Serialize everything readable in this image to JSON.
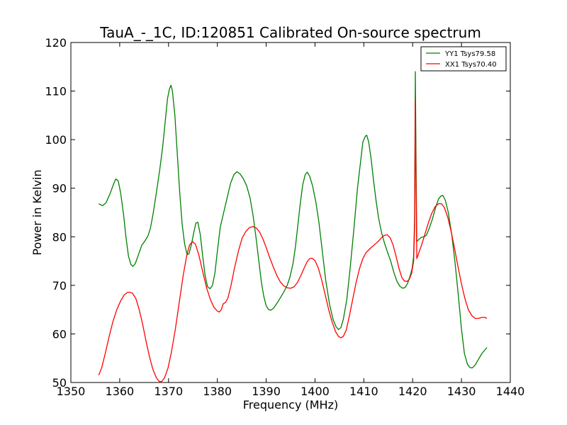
{
  "chart_data": {
    "type": "line",
    "title": "TauA_-_1C, ID:120851 Calibrated On-source spectrum",
    "xlabel": "Frequency (MHz)",
    "ylabel": "Power in Kelvin",
    "xlim": [
      1350,
      1440
    ],
    "ylim": [
      50,
      120
    ],
    "xticks": [
      1350,
      1360,
      1370,
      1380,
      1390,
      1400,
      1410,
      1420,
      1430,
      1440
    ],
    "yticks": [
      50,
      60,
      70,
      80,
      90,
      100,
      110,
      120
    ],
    "grid": false,
    "legend_position": "top-right",
    "series": [
      {
        "name": "YY1 Tsys79.58",
        "color": "#008000",
        "points": [
          [
            1355.7,
            86.8
          ],
          [
            1356.5,
            86.4
          ],
          [
            1357.2,
            87.0
          ],
          [
            1358.0,
            88.8
          ],
          [
            1358.8,
            91.0
          ],
          [
            1359.2,
            91.9
          ],
          [
            1359.7,
            91.5
          ],
          [
            1360.2,
            89.0
          ],
          [
            1360.8,
            84.5
          ],
          [
            1361.3,
            79.8
          ],
          [
            1361.8,
            76.0
          ],
          [
            1362.3,
            74.3
          ],
          [
            1362.7,
            73.9
          ],
          [
            1363.2,
            74.5
          ],
          [
            1363.8,
            76.2
          ],
          [
            1364.5,
            78.2
          ],
          [
            1365.2,
            79.2
          ],
          [
            1365.8,
            80.2
          ],
          [
            1366.3,
            81.8
          ],
          [
            1366.8,
            84.5
          ],
          [
            1367.5,
            89.0
          ],
          [
            1368.2,
            93.8
          ],
          [
            1368.8,
            98.5
          ],
          [
            1369.3,
            103.5
          ],
          [
            1369.8,
            108.5
          ],
          [
            1370.2,
            110.5
          ],
          [
            1370.5,
            111.2
          ],
          [
            1370.8,
            110.0
          ],
          [
            1371.3,
            105.0
          ],
          [
            1371.8,
            97.0
          ],
          [
            1372.3,
            89.0
          ],
          [
            1372.8,
            82.5
          ],
          [
            1373.3,
            78.5
          ],
          [
            1373.8,
            76.3
          ],
          [
            1374.2,
            76.5
          ],
          [
            1374.7,
            78.5
          ],
          [
            1375.2,
            81.0
          ],
          [
            1375.6,
            82.8
          ],
          [
            1376.0,
            83.0
          ],
          [
            1376.5,
            80.5
          ],
          [
            1377.0,
            76.0
          ],
          [
            1377.5,
            72.0
          ],
          [
            1378.0,
            69.7
          ],
          [
            1378.5,
            69.3
          ],
          [
            1379.0,
            70.0
          ],
          [
            1379.5,
            72.5
          ],
          [
            1380.0,
            77.0
          ],
          [
            1380.6,
            82.0
          ],
          [
            1381.3,
            85.0
          ],
          [
            1382.0,
            88.0
          ],
          [
            1382.7,
            91.0
          ],
          [
            1383.4,
            92.8
          ],
          [
            1384.0,
            93.4
          ],
          [
            1384.6,
            93.0
          ],
          [
            1385.3,
            92.0
          ],
          [
            1386.0,
            90.5
          ],
          [
            1386.7,
            88.0
          ],
          [
            1387.3,
            84.5
          ],
          [
            1387.9,
            80.0
          ],
          [
            1388.5,
            75.0
          ],
          [
            1389.0,
            70.8
          ],
          [
            1389.5,
            67.8
          ],
          [
            1390.0,
            65.8
          ],
          [
            1390.5,
            65.0
          ],
          [
            1391.0,
            64.9
          ],
          [
            1391.5,
            65.3
          ],
          [
            1392.2,
            66.3
          ],
          [
            1393.0,
            67.6
          ],
          [
            1393.7,
            68.8
          ],
          [
            1394.3,
            70.0
          ],
          [
            1394.9,
            71.8
          ],
          [
            1395.5,
            74.5
          ],
          [
            1396.0,
            78.0
          ],
          [
            1396.5,
            82.5
          ],
          [
            1397.0,
            87.0
          ],
          [
            1397.5,
            90.8
          ],
          [
            1398.0,
            92.8
          ],
          [
            1398.4,
            93.3
          ],
          [
            1398.9,
            92.5
          ],
          [
            1399.5,
            90.5
          ],
          [
            1400.2,
            87.0
          ],
          [
            1400.8,
            83.0
          ],
          [
            1401.5,
            77.0
          ],
          [
            1402.2,
            71.0
          ],
          [
            1403.0,
            66.0
          ],
          [
            1403.7,
            63.0
          ],
          [
            1404.3,
            61.5
          ],
          [
            1404.8,
            60.9
          ],
          [
            1405.3,
            61.3
          ],
          [
            1405.8,
            63.0
          ],
          [
            1406.5,
            67.0
          ],
          [
            1407.2,
            73.5
          ],
          [
            1408.0,
            82.0
          ],
          [
            1408.7,
            90.0
          ],
          [
            1409.4,
            96.0
          ],
          [
            1409.8,
            99.5
          ],
          [
            1410.3,
            100.7
          ],
          [
            1410.6,
            100.9
          ],
          [
            1411.0,
            99.5
          ],
          [
            1411.5,
            96.0
          ],
          [
            1412.0,
            91.5
          ],
          [
            1412.5,
            87.5
          ],
          [
            1413.0,
            84.0
          ],
          [
            1413.6,
            81.0
          ],
          [
            1414.2,
            78.8
          ],
          [
            1414.8,
            77.0
          ],
          [
            1415.5,
            75.0
          ],
          [
            1416.2,
            72.5
          ],
          [
            1416.8,
            70.8
          ],
          [
            1417.4,
            69.8
          ],
          [
            1418.0,
            69.4
          ],
          [
            1418.5,
            69.6
          ],
          [
            1419.0,
            70.5
          ],
          [
            1419.5,
            72.0
          ],
          [
            1419.9,
            73.5
          ],
          [
            1420.2,
            76.0
          ],
          [
            1420.4,
            84.0
          ],
          [
            1420.55,
            114.0
          ],
          [
            1420.7,
            95.0
          ],
          [
            1420.85,
            79.0
          ],
          [
            1421.3,
            79.5
          ],
          [
            1421.8,
            79.9
          ],
          [
            1422.3,
            80.0
          ],
          [
            1422.8,
            80.3
          ],
          [
            1423.3,
            81.5
          ],
          [
            1424.0,
            83.5
          ],
          [
            1424.7,
            86.0
          ],
          [
            1425.3,
            87.8
          ],
          [
            1425.8,
            88.4
          ],
          [
            1426.2,
            88.5
          ],
          [
            1426.7,
            87.5
          ],
          [
            1427.3,
            85.0
          ],
          [
            1428.0,
            80.5
          ],
          [
            1428.7,
            74.5
          ],
          [
            1429.4,
            67.5
          ],
          [
            1430.0,
            61.0
          ],
          [
            1430.6,
            56.0
          ],
          [
            1431.2,
            53.8
          ],
          [
            1431.7,
            53.1
          ],
          [
            1432.2,
            53.0
          ],
          [
            1432.8,
            53.6
          ],
          [
            1433.5,
            54.8
          ],
          [
            1434.2,
            56.0
          ],
          [
            1435.2,
            57.2
          ]
        ]
      },
      {
        "name": "XX1 Tsys70.40",
        "color": "#ff0000",
        "points": [
          [
            1355.7,
            51.5
          ],
          [
            1356.3,
            53.0
          ],
          [
            1357.0,
            55.8
          ],
          [
            1357.8,
            59.3
          ],
          [
            1358.6,
            62.5
          ],
          [
            1359.4,
            65.0
          ],
          [
            1360.2,
            66.8
          ],
          [
            1360.9,
            68.0
          ],
          [
            1361.5,
            68.5
          ],
          [
            1362.0,
            68.6
          ],
          [
            1362.6,
            68.4
          ],
          [
            1363.3,
            67.3
          ],
          [
            1364.0,
            65.0
          ],
          [
            1364.7,
            62.0
          ],
          [
            1365.4,
            58.5
          ],
          [
            1366.1,
            55.3
          ],
          [
            1366.8,
            52.7
          ],
          [
            1367.5,
            51.0
          ],
          [
            1368.1,
            50.2
          ],
          [
            1368.6,
            50.2
          ],
          [
            1369.2,
            51.0
          ],
          [
            1369.9,
            53.0
          ],
          [
            1370.6,
            56.3
          ],
          [
            1371.4,
            61.0
          ],
          [
            1372.2,
            66.5
          ],
          [
            1373.0,
            72.0
          ],
          [
            1373.7,
            76.0
          ],
          [
            1374.3,
            78.3
          ],
          [
            1374.9,
            79.0
          ],
          [
            1375.5,
            78.5
          ],
          [
            1376.2,
            76.3
          ],
          [
            1377.0,
            72.8
          ],
          [
            1377.8,
            69.5
          ],
          [
            1378.6,
            67.0
          ],
          [
            1379.3,
            65.5
          ],
          [
            1379.9,
            64.8
          ],
          [
            1380.4,
            64.5
          ],
          [
            1380.8,
            65.0
          ],
          [
            1381.2,
            66.2
          ],
          [
            1381.7,
            66.5
          ],
          [
            1382.2,
            67.5
          ],
          [
            1382.8,
            70.0
          ],
          [
            1383.5,
            73.5
          ],
          [
            1384.3,
            77.0
          ],
          [
            1385.1,
            79.8
          ],
          [
            1385.9,
            81.2
          ],
          [
            1386.6,
            81.9
          ],
          [
            1387.3,
            82.1
          ],
          [
            1388.0,
            81.8
          ],
          [
            1388.7,
            80.9
          ],
          [
            1389.4,
            79.4
          ],
          [
            1390.1,
            77.5
          ],
          [
            1390.8,
            75.5
          ],
          [
            1391.5,
            73.7
          ],
          [
            1392.2,
            72.0
          ],
          [
            1392.9,
            70.7
          ],
          [
            1393.6,
            69.9
          ],
          [
            1394.3,
            69.5
          ],
          [
            1395.0,
            69.4
          ],
          [
            1395.7,
            69.7
          ],
          [
            1396.4,
            70.6
          ],
          [
            1397.1,
            72.0
          ],
          [
            1397.8,
            73.6
          ],
          [
            1398.4,
            74.9
          ],
          [
            1398.9,
            75.5
          ],
          [
            1399.4,
            75.6
          ],
          [
            1400.0,
            75.1
          ],
          [
            1400.7,
            73.5
          ],
          [
            1401.4,
            71.0
          ],
          [
            1402.1,
            68.0
          ],
          [
            1402.8,
            65.0
          ],
          [
            1403.5,
            62.5
          ],
          [
            1404.2,
            60.5
          ],
          [
            1404.8,
            59.5
          ],
          [
            1405.3,
            59.2
          ],
          [
            1405.8,
            59.5
          ],
          [
            1406.4,
            60.8
          ],
          [
            1407.0,
            63.5
          ],
          [
            1407.7,
            67.0
          ],
          [
            1408.4,
            70.5
          ],
          [
            1409.1,
            73.4
          ],
          [
            1409.8,
            75.5
          ],
          [
            1410.5,
            76.8
          ],
          [
            1411.3,
            77.6
          ],
          [
            1412.1,
            78.3
          ],
          [
            1412.9,
            79.0
          ],
          [
            1413.6,
            79.8
          ],
          [
            1414.2,
            80.3
          ],
          [
            1414.8,
            80.4
          ],
          [
            1415.4,
            79.8
          ],
          [
            1416.0,
            78.3
          ],
          [
            1416.6,
            76.0
          ],
          [
            1417.2,
            73.5
          ],
          [
            1417.8,
            71.6
          ],
          [
            1418.3,
            70.9
          ],
          [
            1418.8,
            70.8
          ],
          [
            1419.3,
            71.2
          ],
          [
            1419.8,
            72.5
          ],
          [
            1420.2,
            75.0
          ],
          [
            1420.4,
            82.0
          ],
          [
            1420.55,
            108.0
          ],
          [
            1420.7,
            90.0
          ],
          [
            1420.85,
            75.5
          ],
          [
            1421.3,
            76.8
          ],
          [
            1421.9,
            78.5
          ],
          [
            1422.5,
            80.5
          ],
          [
            1423.2,
            82.8
          ],
          [
            1423.9,
            84.8
          ],
          [
            1424.6,
            86.2
          ],
          [
            1425.3,
            86.8
          ],
          [
            1425.9,
            86.8
          ],
          [
            1426.5,
            86.0
          ],
          [
            1427.2,
            84.0
          ],
          [
            1427.9,
            81.0
          ],
          [
            1428.6,
            77.5
          ],
          [
            1429.3,
            73.8
          ],
          [
            1430.0,
            70.3
          ],
          [
            1430.7,
            67.3
          ],
          [
            1431.4,
            65.0
          ],
          [
            1432.1,
            63.8
          ],
          [
            1432.8,
            63.2
          ],
          [
            1433.5,
            63.2
          ],
          [
            1434.2,
            63.4
          ],
          [
            1434.8,
            63.4
          ],
          [
            1435.2,
            63.2
          ]
        ]
      }
    ]
  }
}
